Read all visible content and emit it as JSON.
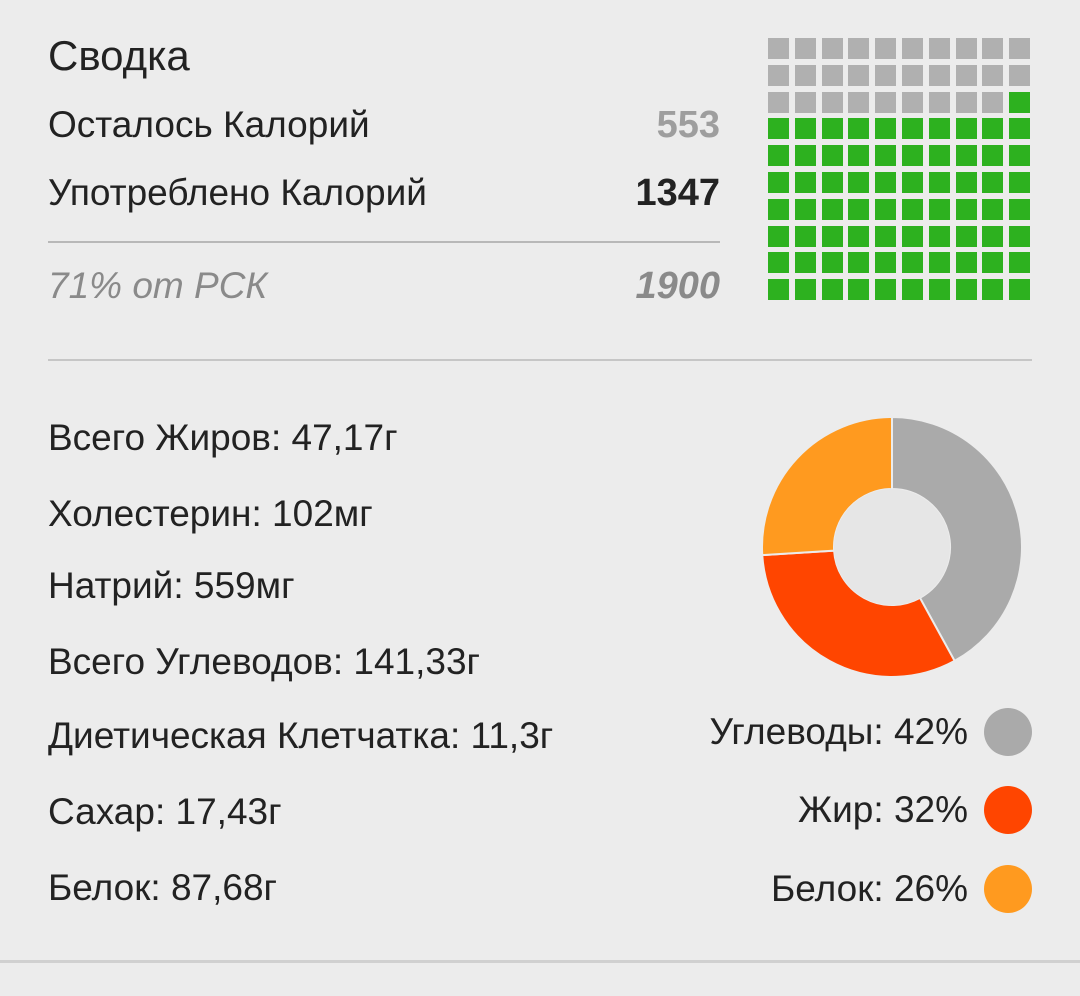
{
  "summary": {
    "title": "Сводка",
    "remaining_label": "Осталось Калорий",
    "remaining_value": "553",
    "consumed_label": "Употреблено Калорий",
    "consumed_value": "1347",
    "rdi_percent_label": "71% от РСК",
    "rdi_value": "1900"
  },
  "calorie_grid": {
    "total_cells": 100,
    "filled_cells": 71,
    "filled_color": "#2db11f",
    "empty_color": "#b0b0b0"
  },
  "nutrients": [
    "Всего Жиров: 47,17г",
    "Холестерин: 102мг",
    "Натрий: 559мг",
    "Всего Углеводов: 141,33г",
    "Диетическая Клетчатка: 11,3г",
    "Сахар: 17,43г",
    "Белок: 87,68г"
  ],
  "chart_data": {
    "type": "pie",
    "donut": true,
    "title": "",
    "categories": [
      "Углеводы",
      "Жир",
      "Белок"
    ],
    "values": [
      42,
      32,
      26
    ],
    "unit": "%",
    "colors": [
      "#aaaaaa",
      "#ff4500",
      "#ff9a1f"
    ],
    "legend_labels": [
      "Углеводы: 42%",
      "Жир: 32%",
      "Белок: 26%"
    ],
    "legend_placement": "bottom-right"
  }
}
